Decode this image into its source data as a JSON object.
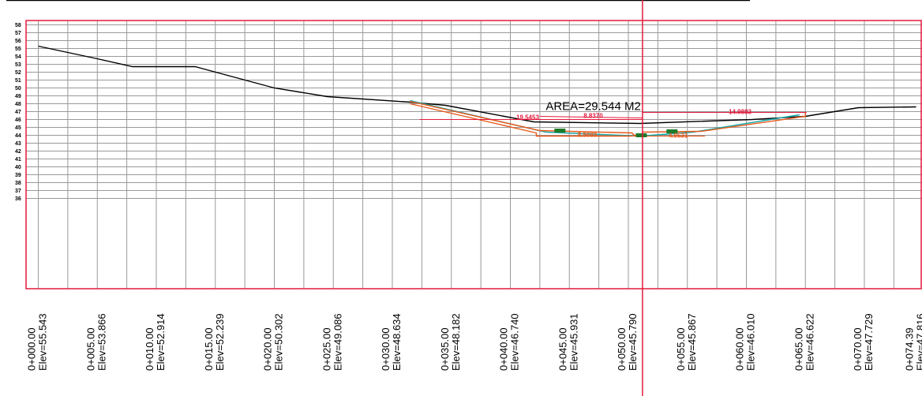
{
  "chart_data": {
    "type": "line",
    "title": "",
    "xlabel": "",
    "ylabel": "",
    "xlim": [
      0,
      78
    ],
    "ylim": [
      35,
      58
    ],
    "y_ticks": [
      36,
      37,
      38,
      39,
      40,
      41,
      42,
      43,
      44,
      45,
      46,
      47,
      48,
      49,
      50,
      51,
      52,
      53,
      54,
      55,
      56,
      57,
      58
    ],
    "stations": [
      {
        "chainage": "0+000.00",
        "elev": "Elev=55.543"
      },
      {
        "chainage": "0+005.00",
        "elev": "Elev=53.866"
      },
      {
        "chainage": "0+010.00",
        "elev": "Elev=52.914"
      },
      {
        "chainage": "0+015.00",
        "elev": "Elev=52.239"
      },
      {
        "chainage": "0+020.00",
        "elev": "Elev=50.302"
      },
      {
        "chainage": "0+025.00",
        "elev": "Elev=49.086"
      },
      {
        "chainage": "0+030.00",
        "elev": "Elev=48.634"
      },
      {
        "chainage": "0+035.00",
        "elev": "Elev=48.182"
      },
      {
        "chainage": "0+040.00",
        "elev": "Elev=46.740"
      },
      {
        "chainage": "0+045.00",
        "elev": "Elev=45.931"
      },
      {
        "chainage": "0+050.00",
        "elev": "Elev=45.790"
      },
      {
        "chainage": "0+055.00",
        "elev": "Elev=45.867"
      },
      {
        "chainage": "0+060.00",
        "elev": "Elev=46.010"
      },
      {
        "chainage": "0+065.00",
        "elev": "Elev=46.622"
      },
      {
        "chainage": "0+070.00",
        "elev": "Elev=47.729"
      },
      {
        "chainage": "0+074.39",
        "elev": "Elev=47.816"
      }
    ],
    "grid": true,
    "series": [
      {
        "role": "ground",
        "color": "#000000",
        "points": [
          [
            0,
            55.3
          ],
          [
            5,
            53.7
          ],
          [
            8,
            52.7
          ],
          [
            13.3,
            52.7
          ],
          [
            20,
            50.0
          ],
          [
            24.5,
            48.9
          ],
          [
            31.5,
            48.2
          ],
          [
            34.5,
            47.8
          ],
          [
            42,
            45.7
          ],
          [
            51,
            45.5
          ],
          [
            60.5,
            46.0
          ],
          [
            65,
            46.4
          ],
          [
            69.5,
            47.5
          ],
          [
            74.39,
            47.6
          ]
        ]
      },
      {
        "role": "design",
        "color": "#19a9a9",
        "points": [
          [
            31.5,
            48.4
          ],
          [
            43,
            44.4
          ],
          [
            51,
            43.9
          ],
          [
            55.5,
            44.4
          ],
          [
            64.5,
            46.6
          ]
        ]
      },
      {
        "role": "excavation",
        "color": "#e8591a",
        "points": [
          [
            31.5,
            48.3
          ],
          [
            42.5,
            44.6
          ],
          [
            50.3,
            44.3
          ],
          [
            50.5,
            44.0
          ],
          [
            51.2,
            44.0
          ],
          [
            51.2,
            44.4
          ],
          [
            56.2,
            44.5
          ],
          [
            65,
            46.4
          ],
          [
            65,
            46.9
          ]
        ]
      },
      {
        "role": "excavation-inner",
        "color": "#e8591a",
        "points": [
          [
            31.5,
            48.0
          ],
          [
            42.2,
            44.3
          ],
          [
            42.2,
            43.9
          ],
          [
            50.2,
            43.9
          ]
        ]
      }
    ],
    "annotations": [
      {
        "text": "AREA=29.544  M2",
        "x": 43,
        "y": 47.2,
        "color": "#000000"
      },
      {
        "text": "19.5453",
        "x": 40.5,
        "y": 46.0,
        "color": "#e31a3d"
      },
      {
        "text": "8.8370",
        "x": 46.2,
        "y": 46.2,
        "color": "#e31a3d"
      },
      {
        "text": "14.9883",
        "x": 58.5,
        "y": 46.7,
        "color": "#e31a3d"
      },
      {
        "text": "8.9689",
        "x": 45.7,
        "y": 43.8,
        "color": "#e8591a"
      },
      {
        "text": "4.9531",
        "x": 53.4,
        "y": 43.7,
        "color": "#e8591a"
      }
    ],
    "reference_line": {
      "x": 51.2,
      "color": "#e31a3d"
    }
  },
  "colors": {
    "grid": "#999999",
    "frame": "#e31a3d",
    "ground": "#000000",
    "design": "#19a9a9",
    "excavation": "#e8591a",
    "dimension": "#e31a3d",
    "pipe": "#1f7a2a"
  }
}
